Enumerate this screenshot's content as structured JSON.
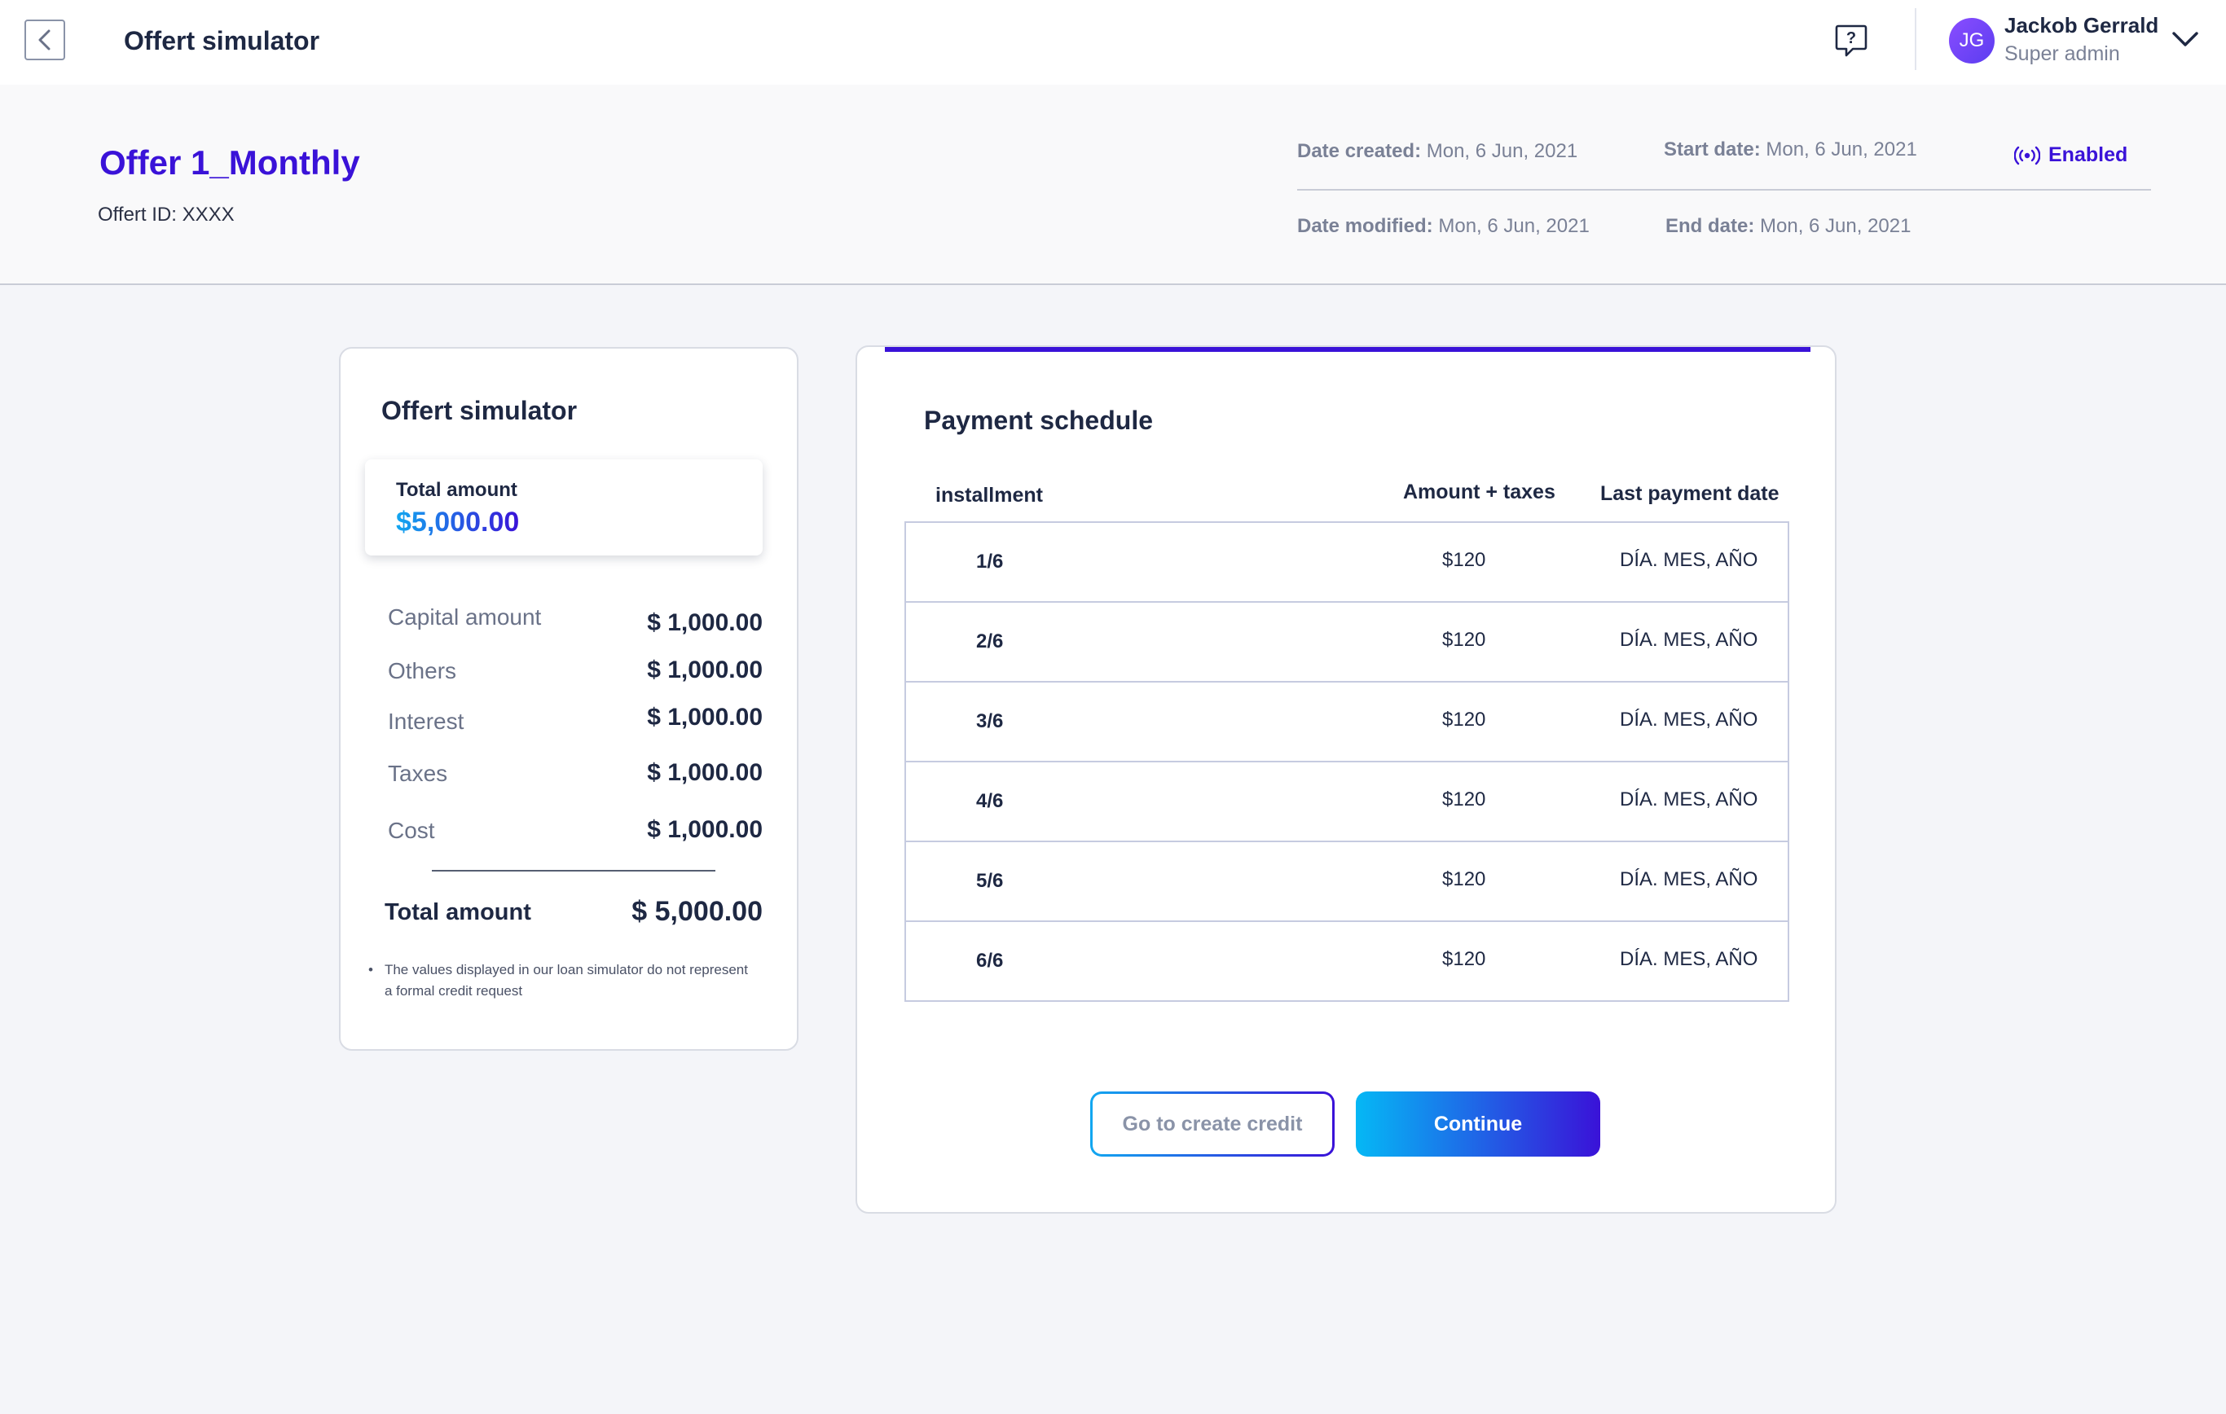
{
  "topbar": {
    "title": "Offert simulator",
    "user": {
      "initials": "JG",
      "name": "Jackob Gerrald",
      "role": "Super admin"
    },
    "icons": {
      "back": "chevron-left-icon",
      "help": "help-chat-icon",
      "menu": "chevron-down-icon"
    }
  },
  "offer": {
    "title": "Offer 1_Monthly",
    "id_label": "Offert ID: XXXX",
    "date_created_label": "Date created:",
    "date_created": "Mon, 6 Jun, 2021",
    "start_date_label": "Start date:",
    "start_date": "Mon, 6 Jun, 2021",
    "date_modified_label": "Date modified:",
    "date_modified": "Mon, 6 Jun, 2021",
    "end_date_label": "End date:",
    "end_date": "Mon, 6 Jun, 2021",
    "status": "Enabled"
  },
  "simulator": {
    "title": "Offert simulator",
    "total_label": "Total amount",
    "total_value": "$5,000.00",
    "rows": [
      {
        "label": "Capital amount",
        "value": "$ 1,000.00"
      },
      {
        "label": "Others",
        "value": "$ 1,000.00"
      },
      {
        "label": "Interest",
        "value": "$ 1,000.00"
      },
      {
        "label": "Taxes",
        "value": "$ 1,000.00"
      },
      {
        "label": "Cost",
        "value": "$ 1,000.00"
      }
    ],
    "summary_label": "Total amount",
    "summary_value": "$ 5,000.00",
    "disclaimer": "The values displayed in our loan simulator do not represent a formal credit request"
  },
  "schedule": {
    "title": "Payment schedule",
    "columns": {
      "installment": "installment",
      "amount": "Amount + taxes",
      "date": "Last payment date"
    },
    "rows": [
      {
        "installment": "1/6",
        "amount": "$120",
        "date": "DÍA. MES, AÑO"
      },
      {
        "installment": "2/6",
        "amount": "$120",
        "date": "DÍA. MES, AÑO"
      },
      {
        "installment": "3/6",
        "amount": "$120",
        "date": "DÍA. MES, AÑO"
      },
      {
        "installment": "4/6",
        "amount": "$120",
        "date": "DÍA. MES, AÑO"
      },
      {
        "installment": "5/6",
        "amount": "$120",
        "date": "DÍA. MES, AÑO"
      },
      {
        "installment": "6/6",
        "amount": "$120",
        "date": "DÍA. MES, AÑO"
      }
    ],
    "secondary_button": "Go to create credit",
    "primary_button": "Continue"
  },
  "colors": {
    "accent": "#3a12d8",
    "accent_light": "#12a7f0",
    "text": "#1e2843",
    "muted": "#7a8196"
  }
}
